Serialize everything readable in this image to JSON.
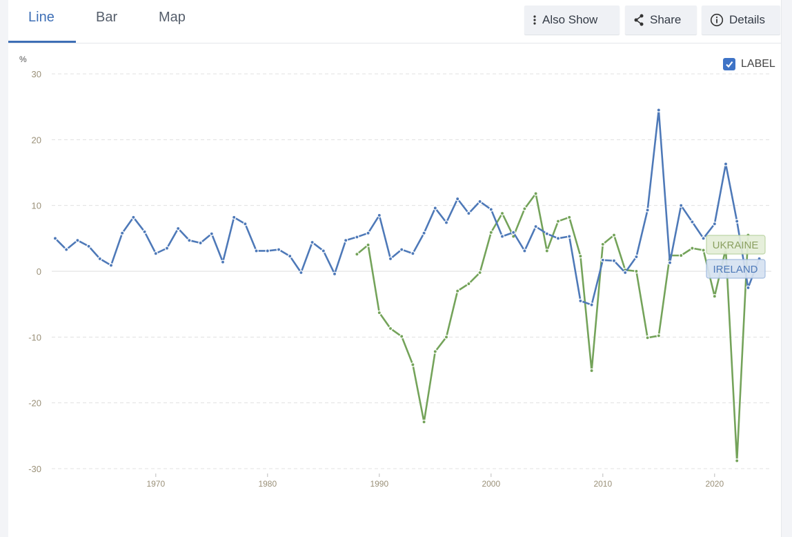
{
  "tabs": [
    {
      "label": "Line",
      "active": true
    },
    {
      "label": "Bar",
      "active": false
    },
    {
      "label": "Map",
      "active": false
    }
  ],
  "actions": {
    "also_show": "Also Show",
    "share": "Share",
    "details": "Details"
  },
  "label_toggle": {
    "label": "LABEL",
    "checked": true
  },
  "colors": {
    "accent": "#3e6fb6",
    "ireland": "#4e79b8",
    "ukraine": "#74a35a"
  },
  "chart_data": {
    "type": "line",
    "ylabel": "%",
    "ylim": [
      -30,
      30
    ],
    "yticks": [
      30,
      20,
      10,
      0,
      -10,
      -20,
      -30
    ],
    "xlim": [
      1960,
      2025
    ],
    "xticks": [
      1970,
      1980,
      1990,
      2000,
      2010,
      2020
    ],
    "grid": true,
    "series": [
      {
        "name": "IRELAND",
        "color": "#4e79b8",
        "x_start": 1961,
        "values": [
          5.0,
          3.3,
          4.7,
          3.8,
          1.9,
          0.9,
          5.8,
          8.2,
          6.0,
          2.7,
          3.5,
          6.5,
          4.7,
          4.3,
          5.7,
          1.4,
          8.2,
          7.2,
          3.1,
          3.1,
          3.3,
          2.3,
          -0.2,
          4.4,
          3.1,
          -0.4,
          4.7,
          5.2,
          5.8,
          8.5,
          1.9,
          3.3,
          2.7,
          5.8,
          9.6,
          7.4,
          11.0,
          8.8,
          10.6,
          9.4,
          5.3,
          5.9,
          3.1,
          6.8,
          5.7,
          5.0,
          5.3,
          -4.5,
          -5.1,
          1.7,
          1.6,
          -0.2,
          2.2,
          9.3,
          24.5,
          1.3,
          10.0,
          7.5,
          5.0,
          7.2,
          16.3,
          7.6,
          -2.5,
          1.9
        ]
      },
      {
        "name": "UKRAINE",
        "color": "#74a35a",
        "x_start": 1988,
        "values": [
          2.6,
          4.0,
          -6.3,
          -8.7,
          -9.9,
          -14.2,
          -22.9,
          -12.2,
          -10.0,
          -3.0,
          -1.9,
          -0.2,
          5.9,
          8.8,
          5.3,
          9.5,
          11.8,
          3.1,
          7.6,
          8.2,
          2.3,
          -15.1,
          4.1,
          5.5,
          0.2,
          0.0,
          -10.1,
          -9.8,
          2.4,
          2.4,
          3.5,
          3.2,
          -3.8,
          3.4,
          -28.8,
          5.5
        ]
      }
    ]
  }
}
